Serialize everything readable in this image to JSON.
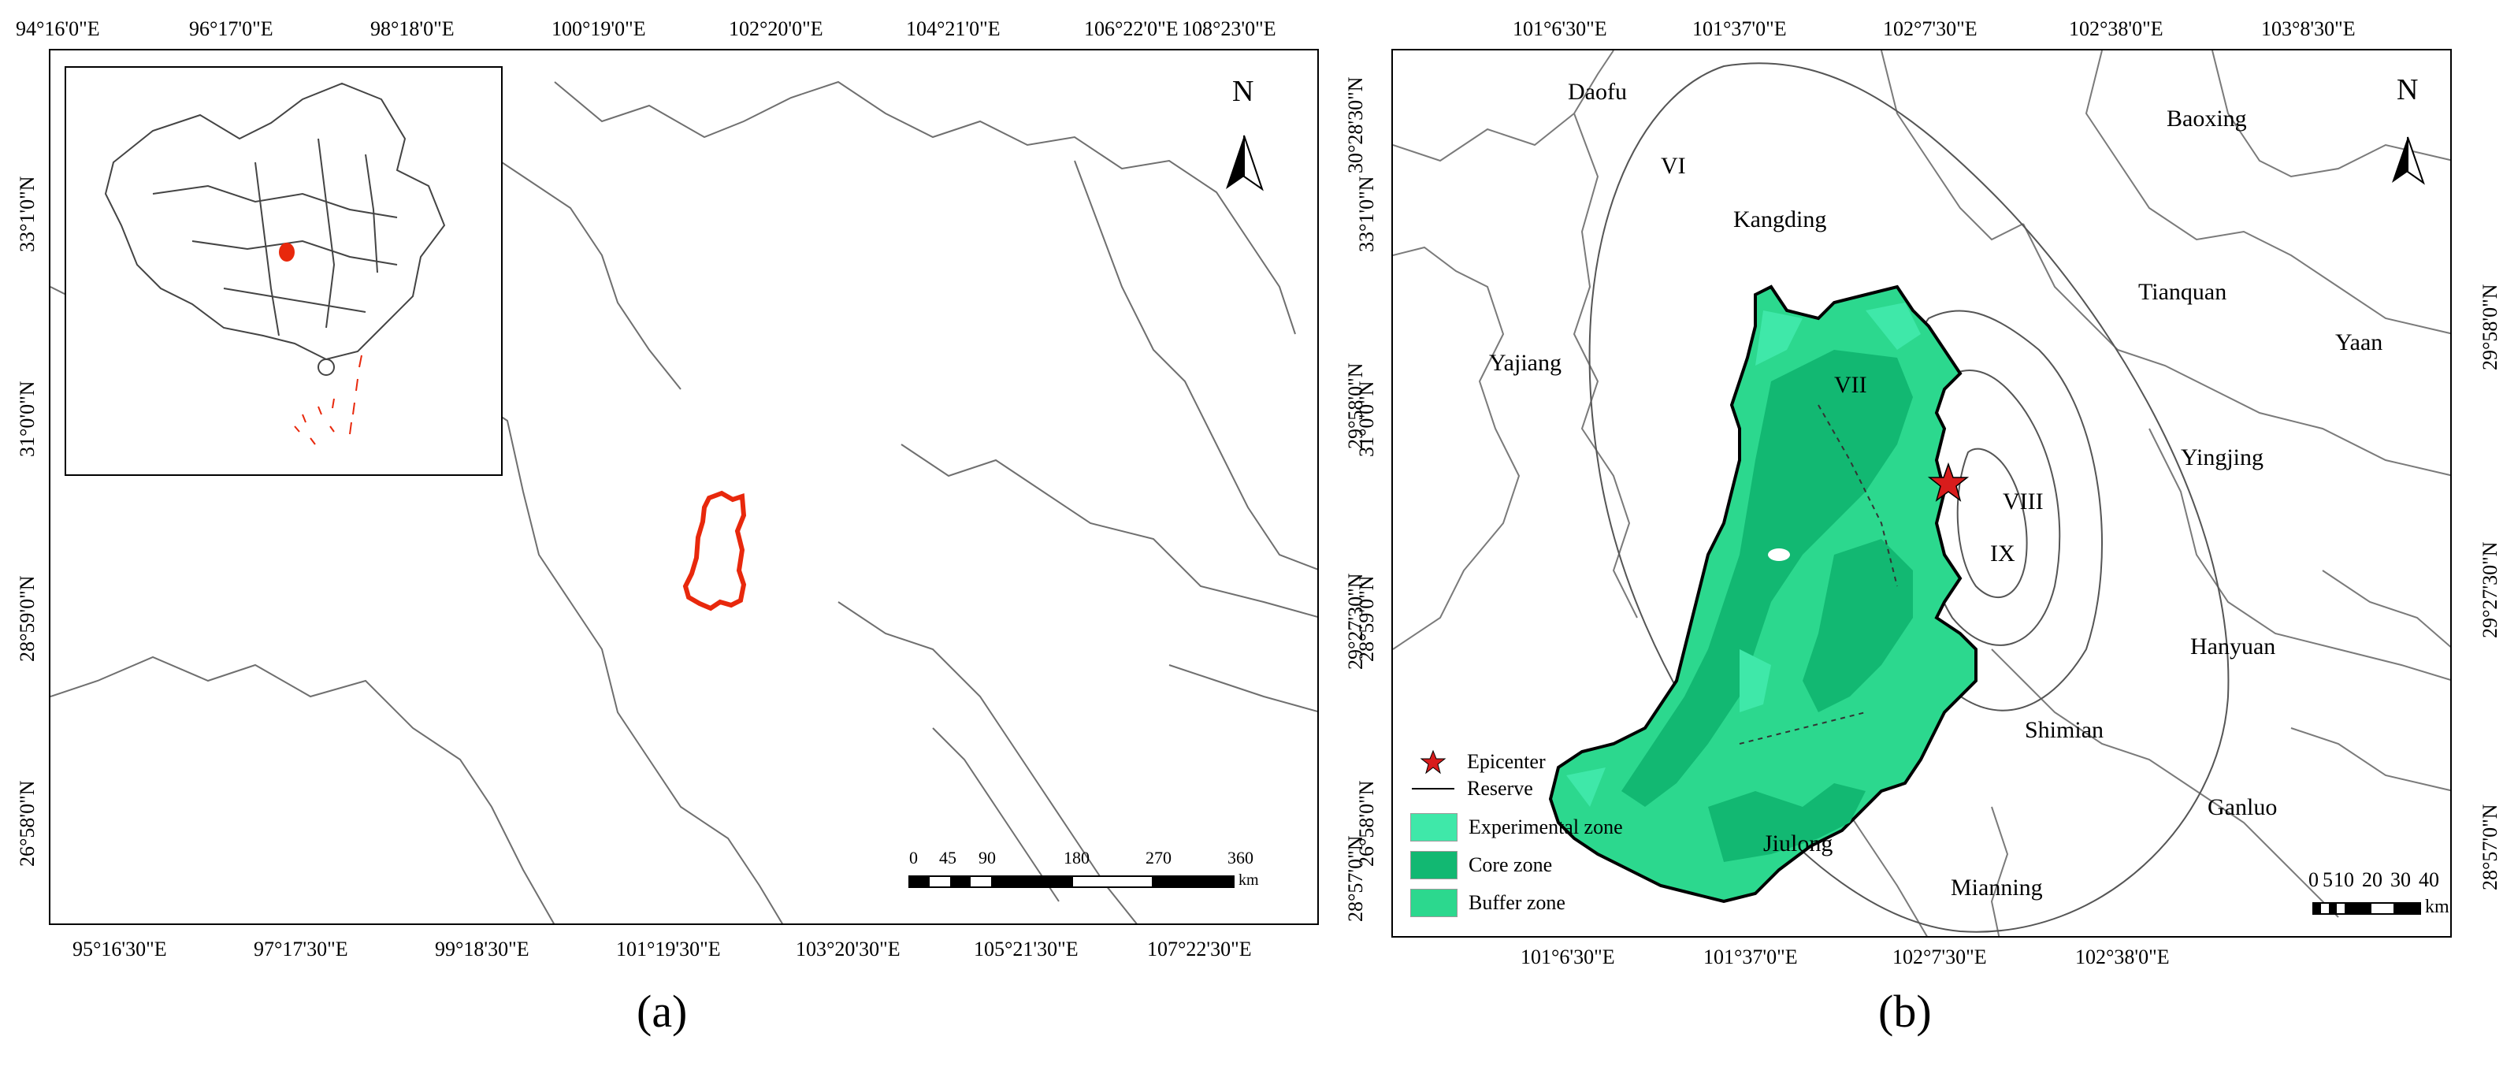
{
  "panel_a": {
    "top_ticks": [
      "94°16'0\"E",
      "96°17'0\"E",
      "98°18'0\"E",
      "100°19'0\"E",
      "102°20'0\"E",
      "104°21'0\"E",
      "106°22'0\"E",
      "108°23'0\"E"
    ],
    "bottom_ticks": [
      "95°16'30\"E",
      "97°17'30\"E",
      "99°18'30\"E",
      "101°19'30\"E",
      "103°20'30\"E",
      "105°21'30\"E",
      "107°22'30\"E"
    ],
    "left_ticks": [
      "33°1'0\"N",
      "31°0'0\"N",
      "28°59'0\"N",
      "26°58'0\"N"
    ],
    "north": "N",
    "scale_numbers": [
      "0",
      "45",
      "90",
      "180",
      "270",
      "360"
    ],
    "scale_unit": "km",
    "caption": "(a)",
    "study_area_color": "#e8280c"
  },
  "panel_b": {
    "top_ticks": [
      "101°6'30\"E",
      "101°37'0\"E",
      "102°7'30\"E",
      "102°38'0\"E",
      "103°8'30\"E"
    ],
    "bottom_ticks": [
      "101°6'30\"E",
      "101°37'0\"E",
      "102°7'30\"E",
      "102°38'0\"E"
    ],
    "left_ticks": [
      "30°28'30\"N",
      "29°58'0\"N",
      "29°27'30\"N",
      "28°57'0\"N"
    ],
    "left_ticks_inner": [
      "33°1'0\"N",
      "31°0'0\"N",
      "28°59'0\"N",
      "26°58'0\"N"
    ],
    "right_ticks": [
      "29°58'0\"N",
      "29°27'30\"N",
      "28°57'0\"N"
    ],
    "north": "N",
    "places": {
      "daofu": "Daofu",
      "baoxing": "Baoxing",
      "kangding": "Kangding",
      "tianquan": "Tianquan",
      "yaan": "Yaan",
      "yajiang": "Yajiang",
      "yingjing": "Yingjing",
      "hanyuan": "Hanyuan",
      "shimian": "Shimian",
      "ganluo": "Ganluo",
      "jiulong": "Jiulong",
      "mianning": "Mianning"
    },
    "intensity": {
      "vi": "VI",
      "vii": "VII",
      "viii": "VIII",
      "ix": "IX"
    },
    "legend": {
      "epicenter": "Epicenter",
      "reserve": "Reserve",
      "experimental": "Experimental zone",
      "core": "Core zone",
      "buffer": "Buffer zone"
    },
    "colors": {
      "experimental": "#3fe8a9",
      "core": "#12b872",
      "buffer": "#2cd88e",
      "epicenter": "#d81c1c"
    },
    "scale_numbers": [
      "0",
      "5",
      "10",
      "20",
      "30",
      "40"
    ],
    "scale_unit": "km",
    "caption": "(b)"
  }
}
